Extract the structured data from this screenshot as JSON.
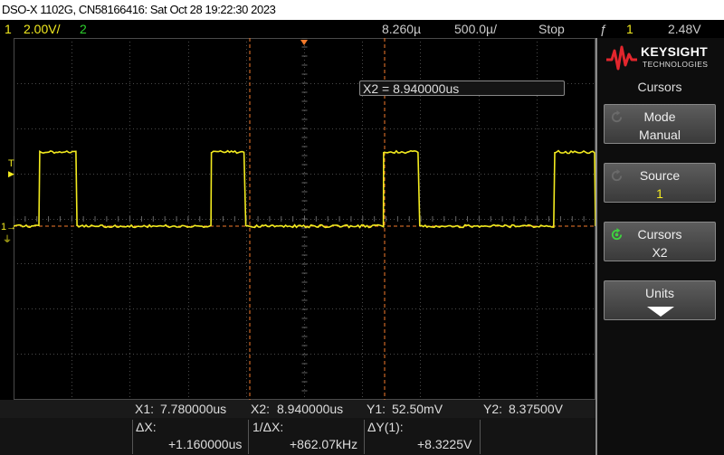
{
  "title_bar": {
    "text": "DSO-X 1102G, CN58166416: Sat Oct 28 19:22:30 2023"
  },
  "status_bar": {
    "ch1_number": "1",
    "ch1_scale": "2.00V/",
    "ch2_number": "2",
    "time_position": "8.260µ",
    "time_scale": "500.0µ/",
    "run_state": "Stop",
    "trigger_symbol": "ƒ",
    "trigger_channel": "1",
    "trigger_level": "2.48V"
  },
  "markers": {
    "trigger_marker": "T",
    "ch1_ground": "1→"
  },
  "cursor_box": {
    "text": "X2 = 8.940000us"
  },
  "brand": {
    "name": "KEYSIGHT",
    "sub": "TECHNOLOGIES"
  },
  "panel": {
    "title": "Cursors",
    "softkeys": [
      {
        "line1": "Mode",
        "line2": "Manual"
      },
      {
        "line1": "Source",
        "line2": "1"
      },
      {
        "line1": "Cursors",
        "line2": "X2"
      },
      {
        "line1": "Units",
        "line2": ""
      }
    ]
  },
  "measurements": {
    "x1_label": "X1:",
    "x1_value": "7.780000us",
    "x2_label": "X2:",
    "x2_value": "8.940000us",
    "y1_label": "Y1:",
    "y1_value": "52.50mV",
    "y2_label": "Y2:",
    "y2_value": "8.37500V",
    "dx_label": "ΔX:",
    "dx_value": "+1.160000us",
    "inv_dx_label": "1/ΔX:",
    "inv_dx_value": "+862.07kHz",
    "dy_label": "ΔY(1):",
    "dy_value": "+8.3225V"
  },
  "waveform": {
    "channel_color": "#f2ea1f",
    "cursor_color": "#f37a2b",
    "low_fraction": 0.52,
    "high_fraction": 0.315,
    "edges_fraction": [
      0.045,
      0.109,
      0.34,
      0.399,
      0.636,
      0.698,
      0.93,
      1.0
    ]
  }
}
